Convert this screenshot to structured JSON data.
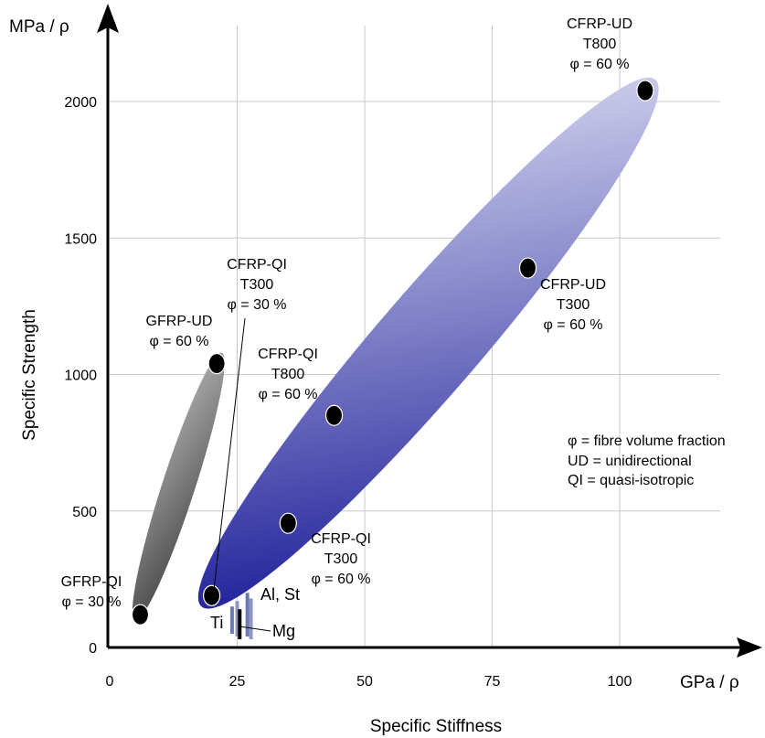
{
  "chart_data": {
    "type": "scatter",
    "x_axis": {
      "unit_label": "GPa / ρ",
      "label": "Specific Stiffness",
      "ticks": [
        0,
        25,
        50,
        75,
        100
      ],
      "range": [
        0,
        110
      ]
    },
    "y_axis": {
      "unit_label": "MPa / ρ",
      "label": "Specific Strength",
      "ticks": [
        0,
        500,
        1000,
        1500,
        2000
      ],
      "range": [
        0,
        2150
      ]
    },
    "grid": true,
    "points": [
      {
        "name": "GFRP-QI",
        "x": 6,
        "y": 120
      },
      {
        "name": "GFRP-UD",
        "x": 21,
        "y": 1040
      },
      {
        "name": "CFRP-QI T300 φ=30%",
        "x": 20,
        "y": 190
      },
      {
        "name": "CFRP-QI T300 φ=60%",
        "x": 35,
        "y": 455
      },
      {
        "name": "CFRP-QI T800",
        "x": 44,
        "y": 850
      },
      {
        "name": "CFRP-UD T300",
        "x": 82,
        "y": 1390
      },
      {
        "name": "CFRP-UD T800",
        "x": 105,
        "y": 2040
      }
    ],
    "regions": [
      {
        "name": "GFRP",
        "from": [
          5,
          100
        ],
        "to": [
          22,
          1080
        ],
        "color_light": "#f5f5f5",
        "color_dark": "#000000"
      },
      {
        "name": "CFRP",
        "from": [
          18,
          150
        ],
        "to": [
          107,
          2080
        ],
        "color_light": "#eef0fb",
        "color_dark": "#00008b"
      }
    ],
    "metal_bars": [
      {
        "name": "Ti",
        "x": 24,
        "y0": 50,
        "y1": 150,
        "color": "#6d7ab0"
      },
      {
        "name": "Ti",
        "x": 25,
        "y0": 40,
        "y1": 170,
        "color": "#8f97c2"
      },
      {
        "name": "Mg",
        "x": 25.5,
        "y0": 30,
        "y1": 140,
        "color": "#000000"
      },
      {
        "name": "Al, St",
        "x": 27,
        "y0": 40,
        "y1": 200,
        "color": "#6d7ab0"
      },
      {
        "name": "Al, St",
        "x": 27.7,
        "y0": 30,
        "y1": 180,
        "color": "#8f97c2"
      }
    ],
    "annotations": [
      {
        "id": "gfrp_qi",
        "lines": [
          "GFRP-QI",
          "φ = 30 %"
        ]
      },
      {
        "id": "gfrp_ud",
        "lines": [
          "GFRP-UD",
          "φ = 60 %"
        ]
      },
      {
        "id": "cfrp_qi_t300_30",
        "lines": [
          "CFRP-QI",
          "T300",
          "φ = 30 %"
        ]
      },
      {
        "id": "cfrp_qi_t800",
        "lines": [
          "CFRP-QI",
          "T800",
          "φ = 60 %"
        ]
      },
      {
        "id": "cfrp_qi_t300_60",
        "lines": [
          "CFRP-QI",
          "T300",
          "φ = 60 %"
        ]
      },
      {
        "id": "cfrp_ud_t300",
        "lines": [
          "CFRP-UD",
          "T300",
          "φ = 60 %"
        ]
      },
      {
        "id": "cfrp_ud_t800",
        "lines": [
          "CFRP-UD",
          "T800",
          "φ = 60 %"
        ]
      },
      {
        "id": "al_st",
        "lines": [
          "Al, St"
        ]
      },
      {
        "id": "ti",
        "lines": [
          "Ti"
        ]
      },
      {
        "id": "mg",
        "lines": [
          "Mg"
        ]
      }
    ],
    "legend_note": [
      "φ = fibre volume fraction",
      "UD = unidirectional",
      "QI = quasi-isotropic"
    ]
  }
}
